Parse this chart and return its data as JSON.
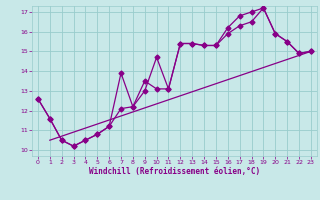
{
  "xlabel": "Windchill (Refroidissement éolien,°C)",
  "bg_color": "#c8e8e8",
  "line_color": "#880088",
  "grid_color": "#99cccc",
  "xlim": [
    -0.5,
    23.5
  ],
  "ylim": [
    9.7,
    17.3
  ],
  "yticks": [
    10,
    11,
    12,
    13,
    14,
    15,
    16,
    17
  ],
  "xticks": [
    0,
    1,
    2,
    3,
    4,
    5,
    6,
    7,
    8,
    9,
    10,
    11,
    12,
    13,
    14,
    15,
    16,
    17,
    18,
    19,
    20,
    21,
    22,
    23
  ],
  "line1_x": [
    0,
    1,
    2,
    3,
    4,
    5,
    6,
    7,
    8,
    9,
    10,
    11,
    12,
    13,
    14,
    15,
    16,
    17,
    18,
    19,
    20,
    21,
    22,
    23
  ],
  "line1_y": [
    12.6,
    11.6,
    10.5,
    10.2,
    10.5,
    10.8,
    11.2,
    12.1,
    12.2,
    13.0,
    14.7,
    13.1,
    15.4,
    15.4,
    15.3,
    15.3,
    15.9,
    16.3,
    16.5,
    17.2,
    15.9,
    15.5,
    14.9,
    15.0
  ],
  "line2_x": [
    0,
    1,
    2,
    3,
    4,
    5,
    6,
    7,
    8,
    9,
    10,
    11,
    12,
    13,
    14,
    15,
    16,
    17,
    18,
    19,
    20,
    21,
    22,
    23
  ],
  "line2_y": [
    12.6,
    11.6,
    10.5,
    10.2,
    10.5,
    10.8,
    11.2,
    13.9,
    12.2,
    13.5,
    13.1,
    13.1,
    15.4,
    15.4,
    15.3,
    15.3,
    16.2,
    16.8,
    17.0,
    17.2,
    15.9,
    15.5,
    14.9,
    15.0
  ],
  "line3_x": [
    1,
    23
  ],
  "line3_y": [
    10.5,
    15.0
  ],
  "marker_size": 2.5,
  "linewidth": 0.9
}
